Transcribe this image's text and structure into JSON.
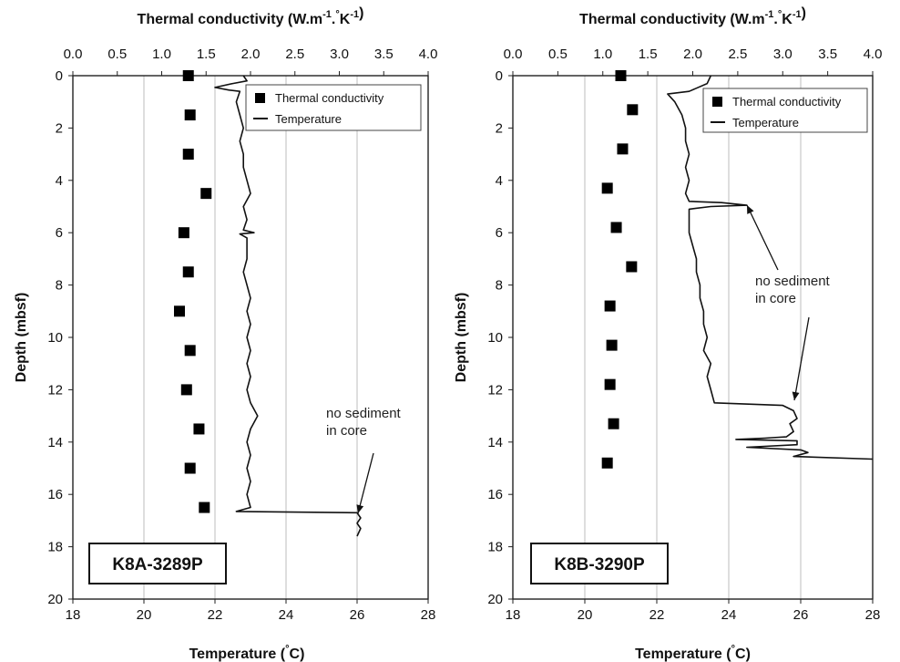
{
  "chart_data": [
    {
      "type": "scatter+line",
      "core_label": "K8A-3289P",
      "top_axis_label": "Thermal conductivity (W.m-1.°K-1)",
      "bottom_axis_label": "Temperature (°C)",
      "ylabel": "Depth (mbsf)",
      "conductivity_range": [
        0.0,
        4.0
      ],
      "conductivity_ticks": [
        "0.0",
        "0.5",
        "1.0",
        "1.5",
        "2.0",
        "2.5",
        "3.0",
        "3.5",
        "4.0"
      ],
      "temperature_range": [
        18,
        28
      ],
      "temperature_ticks": [
        "18",
        "20",
        "22",
        "24",
        "26",
        "28"
      ],
      "depth_range": [
        0,
        20
      ],
      "depth_ticks": [
        "0",
        "2",
        "4",
        "6",
        "8",
        "10",
        "12",
        "14",
        "16",
        "18",
        "20"
      ],
      "legend": [
        "Thermal conductivity",
        "Temperature"
      ],
      "legend_position": "top-right",
      "grid": "vertical",
      "annotation": "no sediment\nin core",
      "conductivity_series": {
        "name": "Thermal conductivity",
        "points": [
          [
            1.3,
            0
          ],
          [
            1.32,
            1.5
          ],
          [
            1.3,
            3
          ],
          [
            1.5,
            4.5
          ],
          [
            1.25,
            6
          ],
          [
            1.3,
            7.5
          ],
          [
            1.2,
            9
          ],
          [
            1.32,
            10.5
          ],
          [
            1.28,
            12
          ],
          [
            1.42,
            13.5
          ],
          [
            1.32,
            15
          ],
          [
            1.48,
            16.5
          ]
        ]
      },
      "temperature_series": {
        "name": "Temperature",
        "points": [
          [
            22.8,
            0
          ],
          [
            22.9,
            0.2
          ],
          [
            22.5,
            0.3
          ],
          [
            22.0,
            0.45
          ],
          [
            22.4,
            0.55
          ],
          [
            22.7,
            0.6
          ],
          [
            22.6,
            1.0
          ],
          [
            22.7,
            1.5
          ],
          [
            22.8,
            2.0
          ],
          [
            22.7,
            2.5
          ],
          [
            22.8,
            3.0
          ],
          [
            22.8,
            3.5
          ],
          [
            22.9,
            4.0
          ],
          [
            23.0,
            4.5
          ],
          [
            22.8,
            5.0
          ],
          [
            22.9,
            5.5
          ],
          [
            22.8,
            5.9
          ],
          [
            23.1,
            6.0
          ],
          [
            22.7,
            6.05
          ],
          [
            22.9,
            6.2
          ],
          [
            22.9,
            7.0
          ],
          [
            22.8,
            7.5
          ],
          [
            22.9,
            8.0
          ],
          [
            23.0,
            8.5
          ],
          [
            22.9,
            9.0
          ],
          [
            23.0,
            9.5
          ],
          [
            22.9,
            10.0
          ],
          [
            23.0,
            10.5
          ],
          [
            22.9,
            11.0
          ],
          [
            23.0,
            11.5
          ],
          [
            22.9,
            12.0
          ],
          [
            23.0,
            12.5
          ],
          [
            23.2,
            13.0
          ],
          [
            23.0,
            13.5
          ],
          [
            22.9,
            14.0
          ],
          [
            23.0,
            14.5
          ],
          [
            22.9,
            15.0
          ],
          [
            23.0,
            15.5
          ],
          [
            22.9,
            16.0
          ],
          [
            23.0,
            16.5
          ],
          [
            22.6,
            16.65
          ],
          [
            26.0,
            16.7
          ],
          [
            26.1,
            16.9
          ],
          [
            26.0,
            17.1
          ],
          [
            26.1,
            17.3
          ],
          [
            26.0,
            17.6
          ]
        ]
      }
    },
    {
      "type": "scatter+line",
      "core_label": "K8B-3290P",
      "top_axis_label": "Thermal conductivity (W.m-1.°K-1)",
      "bottom_axis_label": "Temperature (°C)",
      "ylabel": "Depth (mbsf)",
      "conductivity_range": [
        0.0,
        4.0
      ],
      "conductivity_ticks": [
        "0.0",
        "0.5",
        "1.0",
        "1.5",
        "2.0",
        "2.5",
        "3.0",
        "3.5",
        "4.0"
      ],
      "temperature_range": [
        18,
        28
      ],
      "temperature_ticks": [
        "18",
        "20",
        "22",
        "24",
        "26",
        "28"
      ],
      "depth_range": [
        0,
        20
      ],
      "depth_ticks": [
        "0",
        "2",
        "4",
        "6",
        "8",
        "10",
        "12",
        "14",
        "16",
        "18",
        "20"
      ],
      "legend": [
        "Thermal conductivity",
        "Temperature"
      ],
      "legend_position": "top-right",
      "grid": "vertical",
      "annotation": "no sediment\nin core",
      "conductivity_series": {
        "name": "Thermal conductivity",
        "points": [
          [
            1.2,
            0
          ],
          [
            1.33,
            1.3
          ],
          [
            1.22,
            2.8
          ],
          [
            1.05,
            4.3
          ],
          [
            1.15,
            5.8
          ],
          [
            1.32,
            7.3
          ],
          [
            1.08,
            8.8
          ],
          [
            1.1,
            10.3
          ],
          [
            1.08,
            11.8
          ],
          [
            1.12,
            13.3
          ],
          [
            1.05,
            14.8
          ]
        ]
      },
      "temperature_series": {
        "name": "Temperature",
        "points": [
          [
            23.5,
            0
          ],
          [
            23.4,
            0.3
          ],
          [
            22.9,
            0.6
          ],
          [
            22.3,
            0.7
          ],
          [
            22.5,
            1.0
          ],
          [
            22.7,
            1.5
          ],
          [
            22.8,
            2.0
          ],
          [
            22.8,
            2.5
          ],
          [
            22.9,
            3.0
          ],
          [
            22.8,
            3.5
          ],
          [
            22.9,
            4.0
          ],
          [
            22.8,
            4.5
          ],
          [
            22.9,
            4.8
          ],
          [
            23.8,
            4.85
          ],
          [
            24.5,
            4.95
          ],
          [
            23.5,
            5.0
          ],
          [
            22.9,
            5.1
          ],
          [
            22.9,
            5.5
          ],
          [
            22.9,
            6.0
          ],
          [
            23.0,
            6.5
          ],
          [
            23.1,
            7.0
          ],
          [
            23.1,
            7.5
          ],
          [
            23.2,
            8.0
          ],
          [
            23.2,
            8.5
          ],
          [
            23.3,
            9.0
          ],
          [
            23.3,
            9.5
          ],
          [
            23.4,
            10.0
          ],
          [
            23.3,
            10.5
          ],
          [
            23.5,
            11.0
          ],
          [
            23.4,
            11.5
          ],
          [
            23.5,
            12.0
          ],
          [
            23.6,
            12.5
          ],
          [
            25.5,
            12.6
          ],
          [
            25.8,
            12.8
          ],
          [
            25.9,
            13.1
          ],
          [
            25.7,
            13.3
          ],
          [
            25.8,
            13.6
          ],
          [
            25.6,
            13.8
          ],
          [
            25.0,
            13.85
          ],
          [
            24.2,
            13.9
          ],
          [
            25.9,
            13.95
          ],
          [
            25.9,
            14.1
          ],
          [
            24.5,
            14.2
          ],
          [
            26.0,
            14.3
          ],
          [
            26.2,
            14.4
          ],
          [
            25.8,
            14.55
          ],
          [
            28.0,
            14.65
          ]
        ]
      }
    }
  ]
}
